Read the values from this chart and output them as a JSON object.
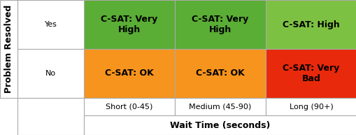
{
  "title_x": "Wait Time (seconds)",
  "title_y": "Problem Resolved",
  "col_labels": [
    "Short (0-45)",
    "Medium (45-90)",
    "Long (90+)"
  ],
  "row_labels": [
    "Yes",
    "No"
  ],
  "cell_texts": [
    [
      "C-SAT: Very\nHigh",
      "C-SAT: Very\nHigh",
      "C-SAT: High"
    ],
    [
      "C-SAT: OK",
      "C-SAT: OK",
      "C-SAT: Very\nBad"
    ]
  ],
  "cell_colors": [
    [
      "#5aad35",
      "#5aad35",
      "#7dc142"
    ],
    [
      "#f7941d",
      "#f7941d",
      "#e8290b"
    ]
  ],
  "cell_text_color": "#000000",
  "label_bg": "#ffffff",
  "border_color": "#aaaaaa",
  "axis_label_fontsize": 9,
  "cell_fontsize": 9,
  "tick_fontsize": 8,
  "ylabel_fontsize": 9,
  "fig_width": 5.1,
  "fig_height": 1.93,
  "dpi": 100
}
